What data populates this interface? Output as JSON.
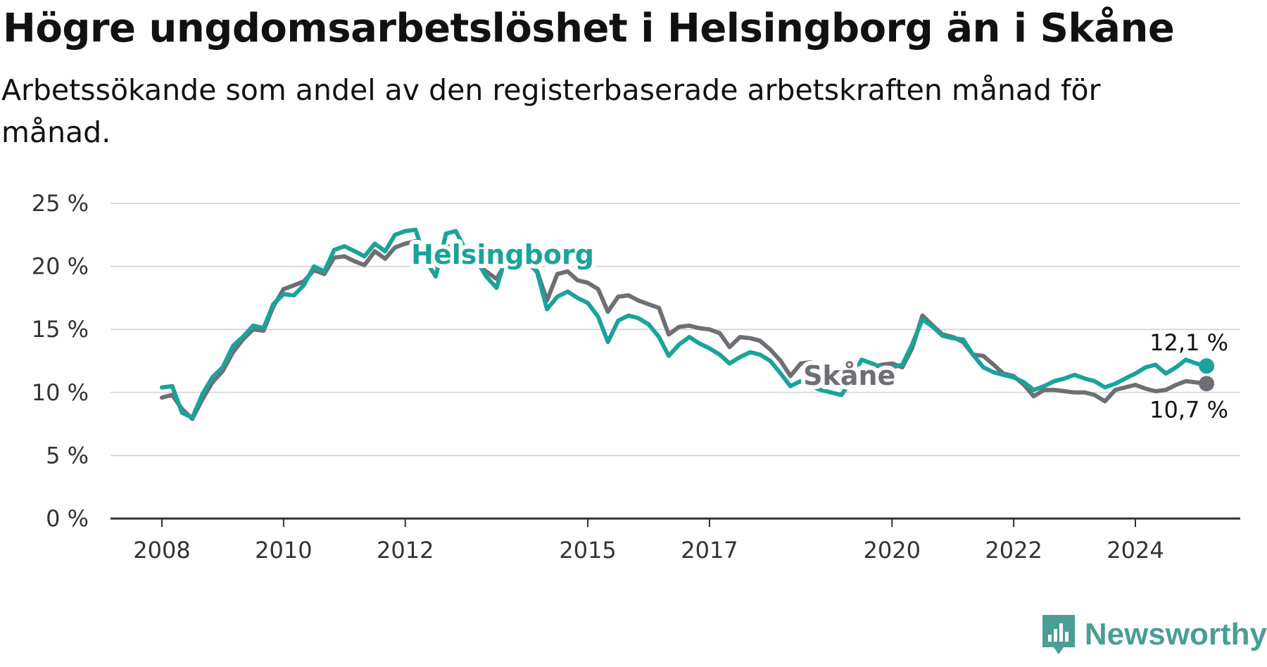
{
  "title": "Högre ungdomsarbetslöshet i Helsingborg än i Skåne",
  "subtitle": "Arbetssökande som andel av den registerbaserade arbetskraften månad för månad.",
  "brand": {
    "name": "Newsworthy",
    "color": "#4a9e94"
  },
  "chart_data": {
    "type": "line",
    "title": "Högre ungdomsarbetslöshet i Helsingborg än i Skåne",
    "subtitle": "Arbetssökande som andel av den registerbaserade arbetskraften månad för månad.",
    "y_unit": "%",
    "ylim": [
      0,
      25
    ],
    "y_ticks": [
      0,
      5,
      10,
      15,
      20,
      25
    ],
    "y_tick_labels": [
      "0 %",
      "5 %",
      "10 %",
      "15 %",
      "20 %",
      "25 %"
    ],
    "xlim": [
      2008,
      2025.8
    ],
    "x_ticks": [
      2008,
      2010,
      2012,
      2015,
      2017,
      2020,
      2022,
      2024
    ],
    "x_tick_labels": [
      "2008",
      "2010",
      "2012",
      "2015",
      "2017",
      "2020",
      "2022",
      "2024"
    ],
    "grid": true,
    "legend": "inline labels",
    "series": [
      {
        "name": "Helsingborg",
        "color": "#1aa39a",
        "end_label": "12,1 %",
        "points": [
          [
            2008.0,
            10.4
          ],
          [
            2008.17,
            10.5
          ],
          [
            2008.33,
            8.4
          ],
          [
            2008.5,
            8.0
          ],
          [
            2008.67,
            9.9
          ],
          [
            2008.83,
            11.2
          ],
          [
            2009.0,
            12.0
          ],
          [
            2009.17,
            13.7
          ],
          [
            2009.33,
            14.4
          ],
          [
            2009.5,
            15.3
          ],
          [
            2009.67,
            15.1
          ],
          [
            2009.83,
            17.0
          ],
          [
            2010.0,
            17.8
          ],
          [
            2010.17,
            17.7
          ],
          [
            2010.33,
            18.5
          ],
          [
            2010.5,
            20.0
          ],
          [
            2010.67,
            19.6
          ],
          [
            2010.83,
            21.3
          ],
          [
            2011.0,
            21.6
          ],
          [
            2011.17,
            21.2
          ],
          [
            2011.33,
            20.8
          ],
          [
            2011.5,
            21.8
          ],
          [
            2011.67,
            21.2
          ],
          [
            2011.83,
            22.5
          ],
          [
            2012.0,
            22.8
          ],
          [
            2012.17,
            22.9
          ],
          [
            2012.33,
            20.5
          ],
          [
            2012.5,
            19.2
          ],
          [
            2012.67,
            22.6
          ],
          [
            2012.83,
            22.8
          ],
          [
            2013.0,
            21.2
          ],
          [
            2013.17,
            20.5
          ],
          [
            2013.33,
            19.2
          ],
          [
            2013.5,
            18.3
          ],
          [
            2013.67,
            21.0
          ],
          [
            2013.83,
            21.4
          ],
          [
            2014.0,
            20.6
          ],
          [
            2014.17,
            19.5
          ],
          [
            2014.33,
            16.6
          ],
          [
            2014.5,
            17.6
          ],
          [
            2014.67,
            18.0
          ],
          [
            2014.83,
            17.5
          ],
          [
            2015.0,
            17.1
          ],
          [
            2015.17,
            16.0
          ],
          [
            2015.33,
            14.0
          ],
          [
            2015.5,
            15.7
          ],
          [
            2015.67,
            16.1
          ],
          [
            2015.83,
            15.9
          ],
          [
            2016.0,
            15.4
          ],
          [
            2016.17,
            14.4
          ],
          [
            2016.33,
            12.9
          ],
          [
            2016.5,
            13.8
          ],
          [
            2016.67,
            14.4
          ],
          [
            2016.83,
            13.9
          ],
          [
            2017.0,
            13.5
          ],
          [
            2017.17,
            13.0
          ],
          [
            2017.33,
            12.3
          ],
          [
            2017.5,
            12.8
          ],
          [
            2017.67,
            13.2
          ],
          [
            2017.83,
            13.0
          ],
          [
            2018.0,
            12.5
          ],
          [
            2018.17,
            11.5
          ],
          [
            2018.33,
            10.5
          ],
          [
            2018.5,
            10.9
          ],
          [
            2018.67,
            10.5
          ],
          [
            2018.83,
            10.2
          ],
          [
            2019.0,
            10.0
          ],
          [
            2019.17,
            9.8
          ],
          [
            2019.33,
            11.0
          ],
          [
            2019.5,
            12.6
          ],
          [
            2019.67,
            12.3
          ],
          [
            2019.83,
            12.0
          ],
          [
            2020.0,
            12.0
          ],
          [
            2020.17,
            12.2
          ],
          [
            2020.33,
            13.8
          ],
          [
            2020.5,
            15.8
          ],
          [
            2020.67,
            15.2
          ],
          [
            2020.83,
            14.5
          ],
          [
            2021.0,
            14.3
          ],
          [
            2021.17,
            14.2
          ],
          [
            2021.33,
            13.0
          ],
          [
            2021.5,
            12.0
          ],
          [
            2021.67,
            11.6
          ],
          [
            2021.83,
            11.4
          ],
          [
            2022.0,
            11.2
          ],
          [
            2022.17,
            10.8
          ],
          [
            2022.33,
            10.2
          ],
          [
            2022.5,
            10.5
          ],
          [
            2022.67,
            10.9
          ],
          [
            2022.83,
            11.1
          ],
          [
            2023.0,
            11.4
          ],
          [
            2023.17,
            11.1
          ],
          [
            2023.33,
            10.9
          ],
          [
            2023.5,
            10.4
          ],
          [
            2023.67,
            10.7
          ],
          [
            2023.83,
            11.1
          ],
          [
            2024.0,
            11.5
          ],
          [
            2024.17,
            12.0
          ],
          [
            2024.33,
            12.2
          ],
          [
            2024.5,
            11.5
          ],
          [
            2024.67,
            12.0
          ],
          [
            2024.83,
            12.6
          ],
          [
            2025.0,
            12.3
          ],
          [
            2025.17,
            12.1
          ]
        ]
      },
      {
        "name": "Skåne",
        "color": "#6f6e74",
        "end_label": "10,7 %",
        "points": [
          [
            2008.0,
            9.6
          ],
          [
            2008.17,
            9.8
          ],
          [
            2008.33,
            8.7
          ],
          [
            2008.5,
            7.9
          ],
          [
            2008.67,
            9.5
          ],
          [
            2008.83,
            10.8
          ],
          [
            2009.0,
            11.7
          ],
          [
            2009.17,
            13.2
          ],
          [
            2009.33,
            14.2
          ],
          [
            2009.5,
            15.0
          ],
          [
            2009.67,
            14.9
          ],
          [
            2009.83,
            16.8
          ],
          [
            2010.0,
            18.2
          ],
          [
            2010.17,
            18.5
          ],
          [
            2010.33,
            18.8
          ],
          [
            2010.5,
            19.7
          ],
          [
            2010.67,
            19.4
          ],
          [
            2010.83,
            20.7
          ],
          [
            2011.0,
            20.8
          ],
          [
            2011.17,
            20.4
          ],
          [
            2011.33,
            20.1
          ],
          [
            2011.5,
            21.2
          ],
          [
            2011.67,
            20.6
          ],
          [
            2011.83,
            21.5
          ],
          [
            2012.0,
            21.8
          ],
          [
            2012.17,
            22.0
          ],
          [
            2012.33,
            20.9
          ],
          [
            2012.5,
            20.1
          ],
          [
            2012.67,
            21.5
          ],
          [
            2012.83,
            21.7
          ],
          [
            2013.0,
            20.8
          ],
          [
            2013.17,
            20.2
          ],
          [
            2013.33,
            19.6
          ],
          [
            2013.5,
            19.0
          ],
          [
            2013.67,
            20.4
          ],
          [
            2013.83,
            20.6
          ],
          [
            2014.0,
            20.3
          ],
          [
            2014.17,
            19.6
          ],
          [
            2014.33,
            17.3
          ],
          [
            2014.5,
            19.4
          ],
          [
            2014.67,
            19.6
          ],
          [
            2014.83,
            18.9
          ],
          [
            2015.0,
            18.7
          ],
          [
            2015.17,
            18.2
          ],
          [
            2015.33,
            16.4
          ],
          [
            2015.5,
            17.6
          ],
          [
            2015.67,
            17.7
          ],
          [
            2015.83,
            17.3
          ],
          [
            2016.0,
            17.0
          ],
          [
            2016.17,
            16.7
          ],
          [
            2016.33,
            14.6
          ],
          [
            2016.5,
            15.2
          ],
          [
            2016.67,
            15.3
          ],
          [
            2016.83,
            15.1
          ],
          [
            2017.0,
            15.0
          ],
          [
            2017.17,
            14.7
          ],
          [
            2017.33,
            13.6
          ],
          [
            2017.5,
            14.4
          ],
          [
            2017.67,
            14.3
          ],
          [
            2017.83,
            14.1
          ],
          [
            2018.0,
            13.4
          ],
          [
            2018.17,
            12.5
          ],
          [
            2018.33,
            11.3
          ],
          [
            2018.5,
            12.3
          ],
          [
            2018.67,
            12.4
          ],
          [
            2018.83,
            11.8
          ],
          [
            2019.0,
            11.6
          ],
          [
            2019.17,
            11.4
          ],
          [
            2019.33,
            11.5
          ],
          [
            2019.5,
            11.9
          ],
          [
            2019.67,
            12.0
          ],
          [
            2019.83,
            12.2
          ],
          [
            2020.0,
            12.3
          ],
          [
            2020.17,
            12.0
          ],
          [
            2020.33,
            13.5
          ],
          [
            2020.5,
            16.1
          ],
          [
            2020.67,
            15.3
          ],
          [
            2020.83,
            14.6
          ],
          [
            2021.0,
            14.4
          ],
          [
            2021.17,
            14.0
          ],
          [
            2021.33,
            13.0
          ],
          [
            2021.5,
            12.9
          ],
          [
            2021.67,
            12.2
          ],
          [
            2021.83,
            11.5
          ],
          [
            2022.0,
            11.3
          ],
          [
            2022.17,
            10.6
          ],
          [
            2022.33,
            9.7
          ],
          [
            2022.5,
            10.2
          ],
          [
            2022.67,
            10.2
          ],
          [
            2022.83,
            10.1
          ],
          [
            2023.0,
            10.0
          ],
          [
            2023.17,
            10.0
          ],
          [
            2023.33,
            9.8
          ],
          [
            2023.5,
            9.3
          ],
          [
            2023.67,
            10.2
          ],
          [
            2023.83,
            10.4
          ],
          [
            2024.0,
            10.6
          ],
          [
            2024.17,
            10.3
          ],
          [
            2024.33,
            10.1
          ],
          [
            2024.5,
            10.2
          ],
          [
            2024.67,
            10.6
          ],
          [
            2024.83,
            10.9
          ],
          [
            2025.0,
            10.8
          ],
          [
            2025.17,
            10.7
          ]
        ]
      }
    ]
  }
}
